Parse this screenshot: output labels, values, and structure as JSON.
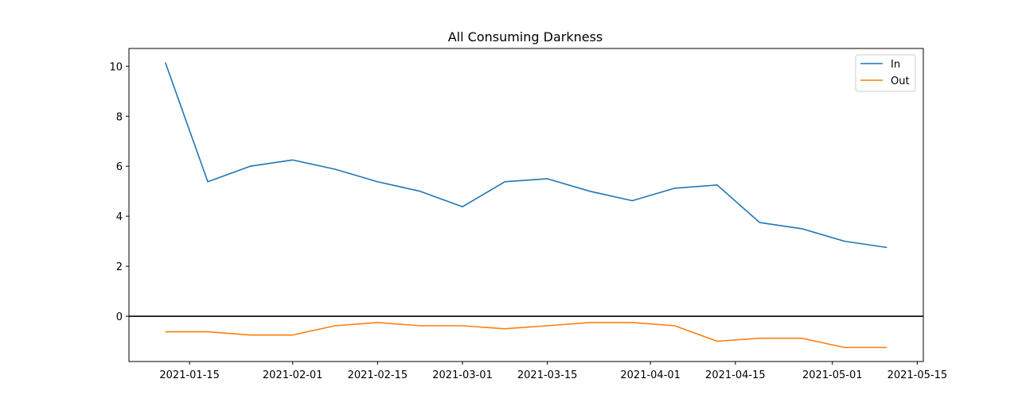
{
  "chart_data": {
    "type": "line",
    "title": "All Consuming Darkness",
    "xlabel": "",
    "ylabel": "",
    "x": [
      "2021-01-11",
      "2021-01-18",
      "2021-01-25",
      "2021-02-01",
      "2021-02-08",
      "2021-02-15",
      "2021-02-22",
      "2021-03-01",
      "2021-03-08",
      "2021-03-15",
      "2021-03-22",
      "2021-03-29",
      "2021-04-05",
      "2021-04-12",
      "2021-04-19",
      "2021-04-26",
      "2021-05-03",
      "2021-05-10"
    ],
    "series": [
      {
        "name": "In",
        "color": "#1f77b4",
        "values": [
          10.15,
          5.38,
          6.0,
          6.25,
          5.88,
          5.38,
          5.0,
          4.38,
          5.38,
          5.5,
          5.0,
          4.62,
          5.12,
          5.25,
          3.75,
          3.5,
          3.0,
          2.75
        ]
      },
      {
        "name": "Out",
        "color": "#ff7f0e",
        "values": [
          -0.62,
          -0.62,
          -0.75,
          -0.75,
          -0.38,
          -0.25,
          -0.38,
          -0.38,
          -0.5,
          -0.38,
          -0.25,
          -0.25,
          -0.38,
          -1.0,
          -0.88,
          -0.88,
          -1.25,
          -1.25
        ]
      }
    ],
    "xlim": [
      "2021-01-05",
      "2021-05-16"
    ],
    "ylim": [
      -1.81,
      10.71
    ],
    "yticks": [
      0,
      2,
      4,
      6,
      8,
      10
    ],
    "yticklabels": [
      "0",
      "2",
      "4",
      "6",
      "8",
      "10"
    ],
    "xticks": [
      "2021-01-15",
      "2021-02-01",
      "2021-02-15",
      "2021-03-01",
      "2021-03-15",
      "2021-04-01",
      "2021-04-15",
      "2021-05-01",
      "2021-05-15"
    ],
    "zero_line": {
      "y": 0,
      "color": "#000000"
    },
    "grid": false,
    "legend": "top-right"
  }
}
